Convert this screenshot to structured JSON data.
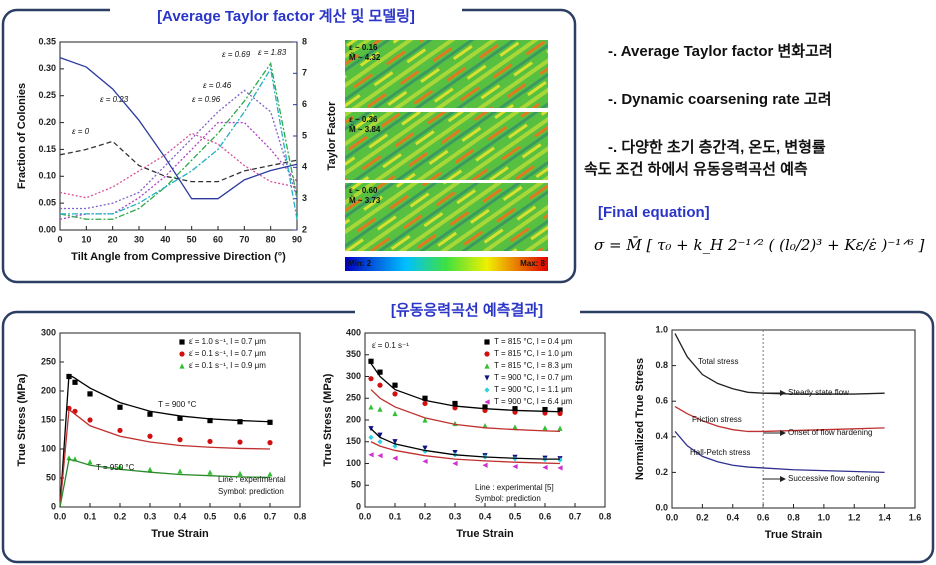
{
  "headings": {
    "top": "[Average Taylor factor 계산 및 모델링]",
    "bottom": "[유동응력곡선 예측결과]",
    "equation_title": "[Final equation]"
  },
  "notes": [
    "-. Average Taylor factor 변화고려",
    "-. Dynamic coarsening rate 고려",
    "-. 다양한 초기 층간격, 온도, 변형률",
    "속도 조건 하에서 유동응력곡선 예측"
  ],
  "equation": "σ = M̄ [ τ₀ + k_H 2⁻¹ᐟ² ( (l₀/2)³ + Kε/ε̇ )⁻¹ᐟ⁶ ]",
  "ebsd": [
    {
      "strain": "ε ~ 0.16",
      "taylor": "M̃ ~ 4.32"
    },
    {
      "strain": "ε ~ 0.36",
      "taylor": "M̃ ~ 3.84"
    },
    {
      "strain": "ε ~ 0.60",
      "taylor": "M̃ ~ 3.73"
    }
  ],
  "colorbar": {
    "min": "Min: 2",
    "max": "Max: 8"
  },
  "chart_data": [
    {
      "type": "line",
      "x_label": "Tilt Angle from Compressive Direction (°)",
      "y_label": "Fraction of Colonies",
      "y2_label": "Taylor Factor",
      "x": [
        0,
        10,
        20,
        30,
        40,
        50,
        60,
        70,
        80,
        90
      ],
      "xlim": [
        0,
        90
      ],
      "xticks": [
        0,
        10,
        20,
        30,
        40,
        50,
        60,
        70,
        80,
        90
      ],
      "ylim": [
        0,
        0.35
      ],
      "yticks": [
        {
          "value": 0,
          "label": "0.00"
        },
        {
          "value": 0.05,
          "label": "0.05"
        },
        {
          "value": 0.1,
          "label": "0.10"
        },
        {
          "value": 0.15,
          "label": "0.15"
        },
        {
          "value": 0.2,
          "label": "0.20"
        },
        {
          "value": 0.25,
          "label": "0.25"
        },
        {
          "value": 0.3,
          "label": "0.30"
        },
        {
          "value": 0.35,
          "label": "0.35"
        }
      ],
      "y2lim": [
        2,
        8
      ],
      "y2ticks": [
        2,
        3,
        4,
        5,
        6,
        7,
        8
      ],
      "series": [
        {
          "name": "ε = 0",
          "color": "#333333",
          "dash": "dashed",
          "values": [
            0.14,
            0.15,
            0.165,
            0.12,
            0.1,
            0.09,
            0.09,
            0.11,
            0.12,
            0.13
          ]
        },
        {
          "name": "ε = 0.23",
          "color": "#d8509a",
          "dash": "dotted",
          "values": [
            0.07,
            0.06,
            0.08,
            0.11,
            0.14,
            0.18,
            0.16,
            0.12,
            0.09,
            0.08
          ]
        },
        {
          "name": "ε = 0.46",
          "color": "#b040c8",
          "dash": "dotted",
          "values": [
            0.02,
            0.03,
            0.03,
            0.06,
            0.1,
            0.15,
            0.2,
            0.2,
            0.15,
            0.09
          ]
        },
        {
          "name": "ε = 0.69",
          "color": "#2ea84a",
          "dash": "dashdot",
          "values": [
            0.03,
            0.02,
            0.02,
            0.04,
            0.08,
            0.13,
            0.18,
            0.24,
            0.31,
            0.06
          ]
        },
        {
          "name": "ε = 0.96",
          "color": "#8060c8",
          "dash": "dotted",
          "values": [
            0.04,
            0.04,
            0.05,
            0.07,
            0.12,
            0.17,
            0.22,
            0.26,
            0.22,
            0.06
          ]
        },
        {
          "name": "ε = 1.83",
          "color": "#20b0c0",
          "dash": "dashdot",
          "values": [
            0.03,
            0.03,
            0.03,
            0.05,
            0.08,
            0.11,
            0.15,
            0.22,
            0.3,
            0.02
          ]
        },
        {
          "color": "#2c3aa0",
          "axis": "y2",
          "values": [
            7.5,
            7.2,
            6.5,
            5.5,
            4.3,
            3.0,
            3.0,
            3.6,
            3.9,
            4.1
          ]
        }
      ]
    },
    {
      "type": "line",
      "x_label": "True Strain",
      "y_label": "True Stress (MPa)",
      "legend": "upper right",
      "x": [
        0,
        0.03,
        0.05,
        0.1,
        0.2,
        0.3,
        0.4,
        0.5,
        0.6,
        0.7
      ],
      "xlim": [
        0,
        0.8
      ],
      "xticks": [
        {
          "value": 0,
          "label": "0.0"
        },
        0.1,
        0.2,
        0.3,
        0.4,
        0.5,
        0.6,
        0.7,
        0.8
      ],
      "ylim": [
        0,
        300
      ],
      "yticks": [
        0,
        50,
        100,
        150,
        200,
        250,
        300
      ],
      "annotations": [
        "T = 900 °C",
        "T = 950 °C",
        "Line   : experimental",
        "Symbol: prediction"
      ],
      "series": [
        {
          "name": "ε̇ = 1.0 s⁻¹, l = 0.7 μm",
          "color": "#000000",
          "marker": "square",
          "values": [
            null,
            225,
            215,
            195,
            172,
            160,
            153,
            149,
            147,
            146
          ]
        },
        {
          "name": "ε̇ = 0.1 s⁻¹, l = 0.7 μm",
          "color": "#d01010",
          "marker": "circle",
          "values": [
            null,
            170,
            165,
            150,
            132,
            122,
            116,
            113,
            112,
            111
          ]
        },
        {
          "name": "ε̇ = 0.1 s⁻¹, l = 0.9 μm",
          "color": "#30c030",
          "marker": "triangle",
          "values": [
            null,
            85,
            83,
            78,
            70,
            65,
            62,
            60,
            58,
            57
          ]
        },
        {
          "color": "#000000",
          "values": [
            0,
            228,
            222,
            205,
            180,
            165,
            157,
            152,
            149,
            147
          ]
        },
        {
          "color": "#c0302f",
          "values": [
            0,
            168,
            160,
            140,
            122,
            112,
            106,
            103,
            101,
            100
          ]
        },
        {
          "color": "#2a8a2a",
          "values": [
            0,
            82,
            80,
            72,
            65,
            60,
            56,
            54,
            52,
            51
          ]
        }
      ]
    },
    {
      "type": "line",
      "x_label": "True Strain",
      "y_label": "True Stress (MPa)",
      "legend": "upper right",
      "x": [
        0.02,
        0.05,
        0.1,
        0.2,
        0.3,
        0.4,
        0.5,
        0.6,
        0.65
      ],
      "xlim": [
        0,
        0.8
      ],
      "xticks": [
        {
          "value": 0,
          "label": "0.0"
        },
        0.1,
        0.2,
        0.3,
        0.4,
        0.5,
        0.6,
        0.7,
        0.8
      ],
      "ylim": [
        0,
        400
      ],
      "yticks": [
        0,
        50,
        100,
        150,
        200,
        250,
        300,
        350,
        400
      ],
      "annotations": [
        "ε̇ = 0.1 s⁻¹",
        "Line   : experimental [5]",
        "Symbol: prediction"
      ],
      "series": [
        {
          "name": "T = 815 °C, l = 0.4 μm",
          "color": "#000000",
          "marker": "square",
          "values": [
            335,
            310,
            280,
            250,
            238,
            230,
            226,
            224,
            223
          ]
        },
        {
          "name": "T = 815 °C, l = 1.0 μm",
          "color": "#d01010",
          "marker": "circle",
          "values": [
            295,
            280,
            260,
            238,
            228,
            222,
            218,
            216,
            215
          ]
        },
        {
          "name": "T = 815 °C, l = 8.3 μm",
          "color": "#30c030",
          "marker": "triangle",
          "values": [
            230,
            225,
            215,
            200,
            192,
            187,
            184,
            182,
            181
          ]
        },
        {
          "name": "T = 900 °C, l = 0.7 μm",
          "color": "#101080",
          "marker": "triangle-down",
          "values": [
            180,
            165,
            150,
            135,
            125,
            118,
            114,
            112,
            111
          ]
        },
        {
          "name": "T = 900 °C, l = 1.1 μm",
          "color": "#30d0e0",
          "marker": "diamond",
          "values": [
            160,
            150,
            140,
            128,
            120,
            115,
            111,
            109,
            108
          ]
        },
        {
          "name": "T = 900 °C, l = 6.4 μm",
          "color": "#d030d0",
          "marker": "triangle-left",
          "values": [
            120,
            118,
            112,
            105,
            100,
            96,
            93,
            91,
            90
          ]
        },
        {
          "color": "#000000",
          "values": [
            330,
            300,
            270,
            245,
            232,
            226,
            222,
            220,
            219
          ]
        },
        {
          "color": "#c0302f",
          "values": [
            270,
            250,
            230,
            205,
            190,
            182,
            178,
            175,
            174
          ]
        },
        {
          "color": "#000000",
          "values": [
            180,
            160,
            145,
            130,
            120,
            115,
            112,
            110,
            110
          ]
        },
        {
          "color": "#c0302f",
          "values": [
            150,
            140,
            130,
            118,
            110,
            106,
            103,
            101,
            100
          ]
        }
      ]
    },
    {
      "type": "line",
      "x_label": "True Strain",
      "y_label": "Normalized True Stress",
      "x": [
        0.02,
        0.1,
        0.2,
        0.3,
        0.4,
        0.5,
        0.6,
        0.8,
        1.0,
        1.2,
        1.4
      ],
      "xlim": [
        0,
        1.6
      ],
      "xticks": [
        {
          "value": 0,
          "label": "0.0"
        },
        0.2,
        0.4,
        0.6,
        0.8,
        {
          "value": 1,
          "label": "1.0"
        },
        1.2,
        1.4,
        1.6
      ],
      "ylim": [
        0,
        1
      ],
      "yticks": [
        {
          "value": 0,
          "label": "0.0"
        },
        0.2,
        0.4,
        0.6,
        0.8,
        {
          "value": 1,
          "label": "1.0"
        }
      ],
      "ref_x": 0.6,
      "annotations": [
        "Steady state flow",
        "Onset of flow hardening",
        "Successive flow softening"
      ],
      "series": [
        {
          "name": "Total stress",
          "color": "#222222",
          "values": [
            0.98,
            0.85,
            0.75,
            0.7,
            0.67,
            0.65,
            0.645,
            0.64,
            0.64,
            0.64,
            0.645
          ]
        },
        {
          "name": "Friction stress",
          "color": "#c03030",
          "values": [
            0.57,
            0.53,
            0.49,
            0.46,
            0.44,
            0.43,
            0.43,
            0.435,
            0.44,
            0.445,
            0.45
          ]
        },
        {
          "name": "Hall-Petch stress",
          "color": "#303090",
          "values": [
            0.43,
            0.35,
            0.29,
            0.26,
            0.24,
            0.23,
            0.225,
            0.215,
            0.21,
            0.205,
            0.2
          ]
        }
      ]
    }
  ]
}
